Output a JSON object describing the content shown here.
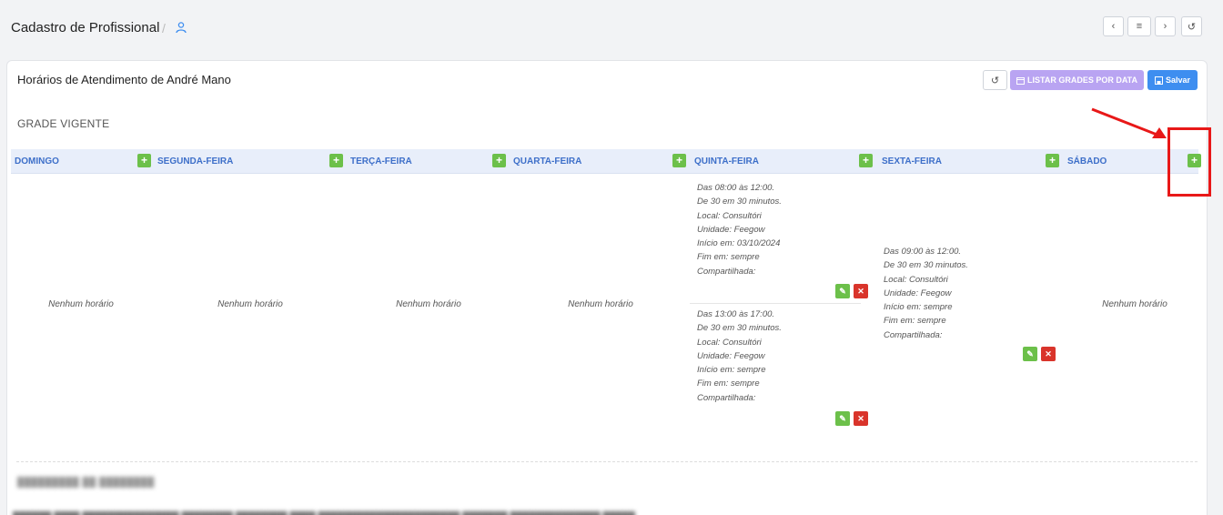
{
  "header": {
    "title": "Cadastro de Profissional",
    "separator": "/",
    "crumb_icon": "user-icon",
    "nav": [
      "previous-icon",
      "list-icon",
      "next-icon",
      "history-icon"
    ]
  },
  "card": {
    "title": "Horários de Atendimento de André Mano",
    "listar_label": "LISTAR GRADES POR DATA",
    "salvar_label": "Salvar",
    "section_title": "GRADE VIGENTE"
  },
  "days": [
    {
      "label": "DOMINGO",
      "empty": "Nenhum horário"
    },
    {
      "label": "SEGUNDA-FEIRA",
      "empty": "Nenhum horário"
    },
    {
      "label": "TERÇA-FEIRA",
      "empty": "Nenhum horário"
    },
    {
      "label": "QUARTA-FEIRA",
      "empty": "Nenhum horário"
    },
    {
      "label": "QUINTA-FEIRA"
    },
    {
      "label": "SEXTA-FEIRA"
    },
    {
      "label": "SÁBADO",
      "empty": "Nenhum horário"
    }
  ],
  "slots": {
    "quinta_1": [
      "Das 08:00 às 12:00.",
      "De 30 em 30 minutos.",
      "Local: Consultóri",
      "Unidade: Feegow",
      "Início em: 03/10/2024",
      "Fim em: sempre",
      "Compartilhada:"
    ],
    "quinta_2": [
      "Das 13:00 às 17:00.",
      "De 30 em 30 minutos.",
      "Local: Consultóri",
      "Unidade: Feegow",
      "Início em: sempre",
      "Fim em: sempre",
      "Compartilhada:"
    ],
    "sexta_1": [
      "Das 09:00 às 12:00.",
      "De 30 em 30 minutos.",
      "Local: Consultóri",
      "Unidade: Feegow",
      "Início em: sempre",
      "Fim em: sempre",
      "Compartilhada:"
    ]
  },
  "icons": {
    "add": "+",
    "edit": "✎",
    "delete": "✕"
  },
  "colors": {
    "accent": "#3d6fc9",
    "add": "#6cc04a",
    "delete": "#d9342b",
    "listar": "#b9a4f2",
    "salvar": "#3e8ef0",
    "annotation": "#e81818"
  }
}
